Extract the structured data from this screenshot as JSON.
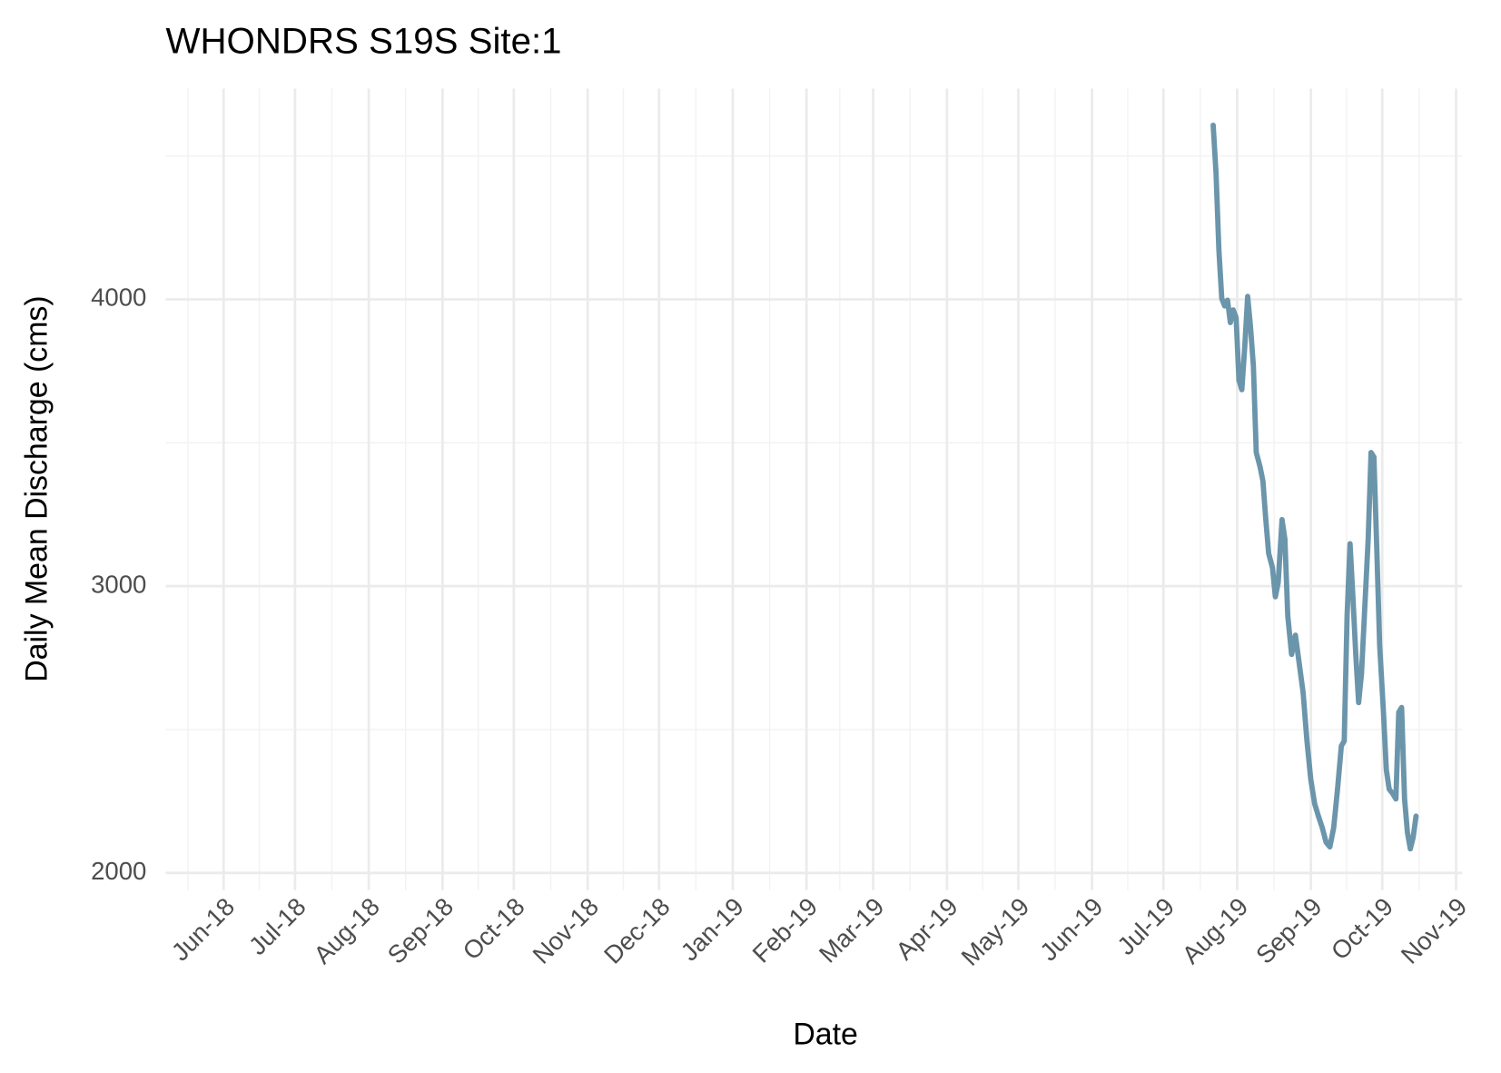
{
  "chart_data": {
    "type": "line",
    "title": "WHONDRS S19S Site:1",
    "x_label": "Date",
    "y_label": "Daily Mean Discharge (cms)",
    "color": "#6b95ab",
    "grid": true,
    "xlim": [
      2018.347,
      2019.84
    ],
    "ylim": [
      1940,
      4735
    ],
    "xticks": [
      {
        "value": 2018.4137,
        "label": "Jun-18"
      },
      {
        "value": 2018.4959,
        "label": "Jul-18"
      },
      {
        "value": 2018.5808,
        "label": "Aug-18"
      },
      {
        "value": 2018.6658,
        "label": "Sep-18"
      },
      {
        "value": 2018.7479,
        "label": "Oct-18"
      },
      {
        "value": 2018.8329,
        "label": "Nov-18"
      },
      {
        "value": 2018.9151,
        "label": "Dec-18"
      },
      {
        "value": 2019.0,
        "label": "Jan-19"
      },
      {
        "value": 2019.0849,
        "label": "Feb-19"
      },
      {
        "value": 2019.1616,
        "label": "Mar-19"
      },
      {
        "value": 2019.2466,
        "label": "Apr-19"
      },
      {
        "value": 2019.3288,
        "label": "May-19"
      },
      {
        "value": 2019.4137,
        "label": "Jun-19"
      },
      {
        "value": 2019.4959,
        "label": "Jul-19"
      },
      {
        "value": 2019.5808,
        "label": "Aug-19"
      },
      {
        "value": 2019.6658,
        "label": "Sep-19"
      },
      {
        "value": 2019.7479,
        "label": "Oct-19"
      },
      {
        "value": 2019.8329,
        "label": "Nov-19"
      }
    ],
    "yticks": [
      2000,
      3000,
      4000
    ],
    "x": [
      2019.5532,
      2019.5565,
      2019.5598,
      2019.5631,
      2019.5664,
      2019.5697,
      2019.573,
      2019.5763,
      2019.5796,
      2019.5829,
      2019.5862,
      2019.5896,
      2019.5929,
      2019.5962,
      2019.5995,
      2019.6028,
      2019.6072,
      2019.6105,
      2019.6138,
      2019.6171,
      2019.6215,
      2019.6248,
      2019.6281,
      2019.6325,
      2019.6358,
      2019.6391,
      2019.6435,
      2019.6479,
      2019.6524,
      2019.6568,
      2019.6612,
      2019.6656,
      2019.67,
      2019.6744,
      2019.6788,
      2019.6832,
      2019.6876,
      2019.692,
      2019.6964,
      2019.7008,
      2019.7041,
      2019.7074,
      2019.7108,
      2019.7141,
      2019.7174,
      2019.7207,
      2019.724,
      2019.7273,
      2019.7317,
      2019.735,
      2019.7383,
      2019.7416,
      2019.7449,
      2019.7493,
      2019.7526,
      2019.7559,
      2019.7603,
      2019.7636,
      2019.7669,
      2019.7702,
      2019.7736,
      2019.7769,
      2019.7802,
      2019.7835,
      2019.7868
    ],
    "values": [
      4607,
      4440,
      4171,
      4003,
      3977,
      3997,
      3919,
      3963,
      3936,
      3718,
      3685,
      3836,
      4010,
      3903,
      3768,
      3466,
      3416,
      3366,
      3232,
      3114,
      3064,
      2963,
      3013,
      3232,
      3164,
      2896,
      2762,
      2829,
      2728,
      2628,
      2460,
      2326,
      2242,
      2198,
      2158,
      2107,
      2091,
      2158,
      2292,
      2443,
      2460,
      2896,
      3148,
      2963,
      2762,
      2594,
      2695,
      2896,
      3164,
      3466,
      3450,
      3131,
      2795,
      2560,
      2359,
      2292,
      2275,
      2258,
      2560,
      2577,
      2258,
      2141,
      2084,
      2124,
      2198
    ]
  }
}
